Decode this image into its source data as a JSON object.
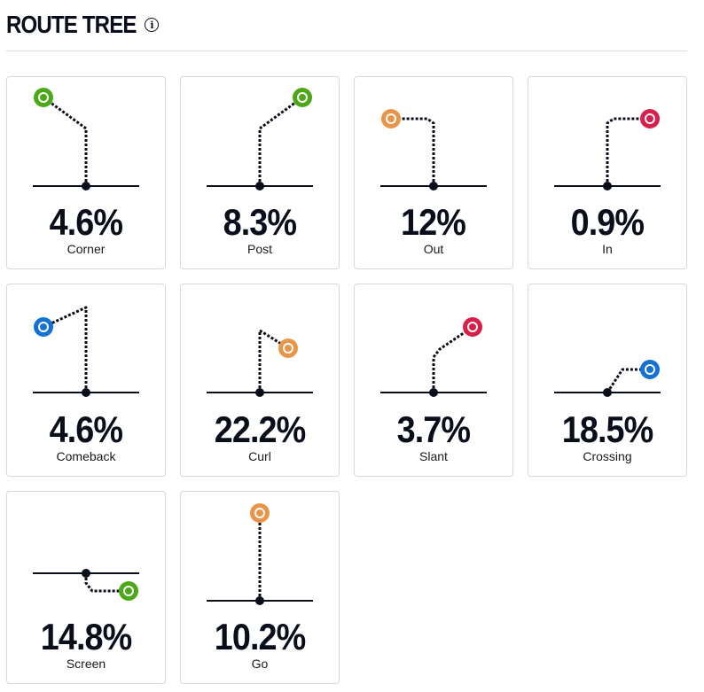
{
  "header": {
    "title": "ROUTE TREE",
    "info_icon": "info-icon"
  },
  "colors": {
    "green": "#4ca818",
    "orange": "#e8954a",
    "red": "#d81e4a",
    "blue": "#1472d4",
    "ink": "#0a0e1a"
  },
  "chart_data": {
    "type": "route-tree",
    "title": "ROUTE TREE",
    "unit": "%",
    "routes": [
      {
        "name": "Corner",
        "value": 4.6,
        "display": "4.6%",
        "color": "green"
      },
      {
        "name": "Post",
        "value": 8.3,
        "display": "8.3%",
        "color": "green"
      },
      {
        "name": "Out",
        "value": 12,
        "display": "12%",
        "color": "orange"
      },
      {
        "name": "In",
        "value": 0.9,
        "display": "0.9%",
        "color": "red"
      },
      {
        "name": "Comeback",
        "value": 4.6,
        "display": "4.6%",
        "color": "blue"
      },
      {
        "name": "Curl",
        "value": 22.2,
        "display": "22.2%",
        "color": "orange"
      },
      {
        "name": "Slant",
        "value": 3.7,
        "display": "3.7%",
        "color": "red"
      },
      {
        "name": "Crossing",
        "value": 18.5,
        "display": "18.5%",
        "color": "blue"
      },
      {
        "name": "Screen",
        "value": 14.8,
        "display": "14.8%",
        "color": "green"
      },
      {
        "name": "Go",
        "value": 10.2,
        "display": "10.2%",
        "color": "orange"
      }
    ]
  }
}
